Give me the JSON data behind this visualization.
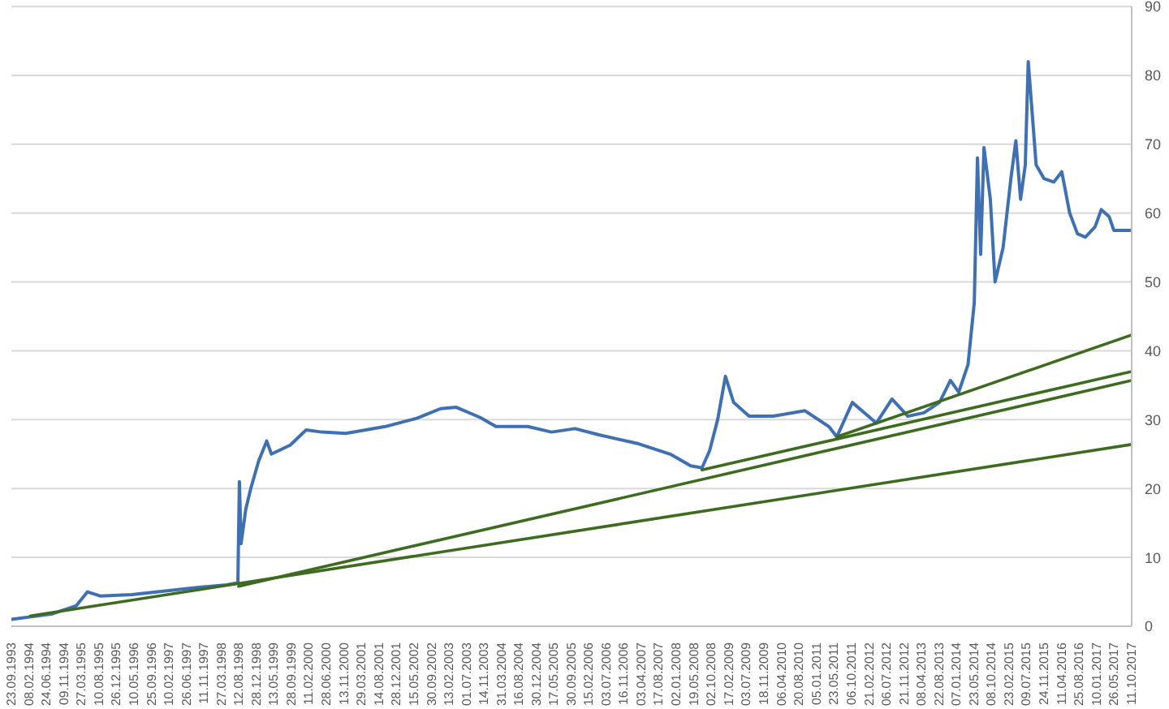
{
  "chart_data": {
    "type": "line",
    "series": [
      {
        "color": "#3e70b2",
        "x": [
          "1993-09-23",
          "1994-08-11",
          "1995-02-15",
          "1995-05-13",
          "1995-08-20",
          "1996-04-25",
          "1996-12-29",
          "1997-09-03",
          "1998-05-09",
          "1998-08-04",
          "1998-08-16",
          "1998-08-29",
          "1998-10-05",
          "1998-11-13",
          "1999-01-14",
          "1999-03-18",
          "1999-04-24",
          "1999-09-18",
          "2000-01-21",
          "2000-05-23",
          "2000-11-27",
          "2001-10-03",
          "2002-06-07",
          "2002-12-11",
          "2003-04-13",
          "2003-10-18",
          "2004-02-17",
          "2004-10-24",
          "2005-04-28",
          "2005-10-30",
          "2006-05-05",
          "2007-03-12",
          "2007-11-15",
          "2008-04-24",
          "2008-07-21",
          "2008-09-19",
          "2008-11-21",
          "2009-01-21",
          "2009-03-26",
          "2009-07-26",
          "2010-01-30",
          "2010-10-06",
          "2011-04-12",
          "2011-06-13",
          "2011-10-13",
          "2012-04-18",
          "2012-08-19",
          "2012-12-21",
          "2013-04-26",
          "2013-08-26",
          "2013-11-20",
          "2014-01-24",
          "2014-04-07",
          "2014-05-26",
          "2014-06-20",
          "2014-07-15",
          "2014-08-10",
          "2014-09-29",
          "2014-11-05",
          "2015-01-07",
          "2015-03-09",
          "2015-04-17",
          "2015-05-24",
          "2015-06-30",
          "2015-07-23",
          "2015-08-17",
          "2015-09-23",
          "2015-11-24",
          "2016-02-08",
          "2016-04-11",
          "2016-06-12",
          "2016-08-12",
          "2016-10-13",
          "2016-12-28",
          "2017-02-15",
          "2017-04-17",
          "2017-05-24",
          "2017-10-11"
        ],
        "values": [
          1.0,
          1.8,
          3.0,
          5.0,
          4.4,
          4.6,
          5.1,
          5.6,
          6.0,
          6.3,
          21,
          12,
          17,
          20,
          24,
          26.9,
          25,
          26.3,
          28.5,
          28.2,
          28.0,
          29.0,
          30.2,
          31.6,
          31.8,
          30.3,
          29.0,
          29.0,
          28.2,
          28.7,
          27.8,
          26.5,
          25.0,
          23.3,
          23.0,
          25.5,
          30.0,
          36.3,
          32.5,
          30.5,
          30.5,
          31.3,
          29.0,
          27.5,
          32.5,
          29.5,
          33.0,
          30.5,
          31.0,
          32.5,
          35.7,
          34.0,
          38,
          47,
          68,
          54,
          69.5,
          62,
          50,
          55,
          65,
          70.5,
          62,
          67,
          82,
          76,
          67,
          65,
          64.5,
          66,
          60,
          57,
          56.5,
          58,
          60.5,
          59.5,
          57.5,
          57.5
        ]
      },
      {
        "color": "#3d6b1f",
        "x": [
          "1994-02-20",
          "2017-10-11"
        ],
        "values": [
          1.5,
          26.4
        ]
      },
      {
        "color": "#3d6b1f",
        "x": [
          "1998-08-10",
          "2017-10-11"
        ],
        "values": [
          5.8,
          35.7
        ]
      },
      {
        "color": "#3d6b1f",
        "x": [
          "2008-07-21",
          "2017-10-11"
        ],
        "values": [
          22.7,
          37.0
        ]
      },
      {
        "color": "#3d6b1f",
        "x": [
          "2011-06-13",
          "2017-10-11"
        ],
        "values": [
          27.5,
          42.3
        ]
      }
    ],
    "xlim": [
      "1993-09-23",
      "2017-10-11"
    ],
    "xticks": [
      {
        "value": "1993-09-23",
        "label": "23.09.1993"
      },
      {
        "value": "1994-02-08",
        "label": "08.02.1994"
      },
      {
        "value": "1994-06-24",
        "label": "24.06.1994"
      },
      {
        "value": "1994-11-09",
        "label": "09.11.1994"
      },
      {
        "value": "1995-03-27",
        "label": "27.03.1995"
      },
      {
        "value": "1995-08-10",
        "label": "10.08.1995"
      },
      {
        "value": "1995-12-26",
        "label": "26.12.1995"
      },
      {
        "value": "1996-05-10",
        "label": "10.05.1996"
      },
      {
        "value": "1996-09-25",
        "label": "25.09.1996"
      },
      {
        "value": "1997-02-10",
        "label": "10.02.1997"
      },
      {
        "value": "1997-06-26",
        "label": "26.06.1997"
      },
      {
        "value": "1997-11-11",
        "label": "11.11.1997"
      },
      {
        "value": "1998-03-27",
        "label": "27.03.1998"
      },
      {
        "value": "1998-08-12",
        "label": "12.08.1998"
      },
      {
        "value": "1998-12-28",
        "label": "28.12.1998"
      },
      {
        "value": "1999-05-13",
        "label": "13.05.1999"
      },
      {
        "value": "1999-09-28",
        "label": "28.09.1999"
      },
      {
        "value": "2000-02-11",
        "label": "11.02.2000"
      },
      {
        "value": "2000-06-28",
        "label": "28.06.2000"
      },
      {
        "value": "2000-11-13",
        "label": "13.11.2000"
      },
      {
        "value": "2001-03-29",
        "label": "29.03.2001"
      },
      {
        "value": "2001-08-14",
        "label": "14.08.2001"
      },
      {
        "value": "2001-12-28",
        "label": "28.12.2001"
      },
      {
        "value": "2002-05-15",
        "label": "15.05.2002"
      },
      {
        "value": "2002-09-30",
        "label": "30.09.2002"
      },
      {
        "value": "2003-02-13",
        "label": "13.02.2003"
      },
      {
        "value": "2003-07-01",
        "label": "01.07.2003"
      },
      {
        "value": "2003-11-14",
        "label": "14.11.2003"
      },
      {
        "value": "2004-03-31",
        "label": "31.03.2004"
      },
      {
        "value": "2004-08-16",
        "label": "16.08.2004"
      },
      {
        "value": "2004-12-30",
        "label": "30.12.2004"
      },
      {
        "value": "2005-05-17",
        "label": "17.05.2005"
      },
      {
        "value": "2005-09-30",
        "label": "30.09.2005"
      },
      {
        "value": "2006-02-15",
        "label": "15.02.2006"
      },
      {
        "value": "2006-07-03",
        "label": "03.07.2006"
      },
      {
        "value": "2006-11-16",
        "label": "16.11.2006"
      },
      {
        "value": "2007-04-03",
        "label": "03.04.2007"
      },
      {
        "value": "2007-08-17",
        "label": "17.08.2007"
      },
      {
        "value": "2008-01-02",
        "label": "02.01.2008"
      },
      {
        "value": "2008-05-19",
        "label": "19.05.2008"
      },
      {
        "value": "2008-10-02",
        "label": "02.10.2008"
      },
      {
        "value": "2009-02-17",
        "label": "17.02.2009"
      },
      {
        "value": "2009-07-03",
        "label": "03.07.2009"
      },
      {
        "value": "2009-11-18",
        "label": "18.11.2009"
      },
      {
        "value": "2010-04-06",
        "label": "06.04.2010"
      },
      {
        "value": "2010-08-20",
        "label": "20.08.2010"
      },
      {
        "value": "2011-01-05",
        "label": "05.01.2011"
      },
      {
        "value": "2011-05-23",
        "label": "23.05.2011"
      },
      {
        "value": "2011-10-06",
        "label": "06.10.2011"
      },
      {
        "value": "2012-02-21",
        "label": "21.02.2012"
      },
      {
        "value": "2012-07-06",
        "label": "06.07.2012"
      },
      {
        "value": "2012-11-21",
        "label": "21.11.2012"
      },
      {
        "value": "2013-04-08",
        "label": "08.04.2013"
      },
      {
        "value": "2013-08-22",
        "label": "22.08.2013"
      },
      {
        "value": "2014-01-07",
        "label": "07.01.2014"
      },
      {
        "value": "2014-05-23",
        "label": "23.05.2014"
      },
      {
        "value": "2014-10-08",
        "label": "08.10.2014"
      },
      {
        "value": "2015-02-23",
        "label": "23.02.2015"
      },
      {
        "value": "2015-07-09",
        "label": "09.07.2015"
      },
      {
        "value": "2015-11-24",
        "label": "24.11.2015"
      },
      {
        "value": "2016-04-11",
        "label": "11.04.2016"
      },
      {
        "value": "2016-08-25",
        "label": "25.08.2016"
      },
      {
        "value": "2017-01-10",
        "label": "10.01.2017"
      },
      {
        "value": "2017-05-26",
        "label": "26.05.2017"
      },
      {
        "value": "2017-10-11",
        "label": "11.10.2017"
      }
    ],
    "ylim": [
      0,
      90
    ],
    "yticks": [
      0,
      10,
      20,
      30,
      40,
      50,
      60,
      70,
      80,
      90
    ],
    "grid": "y",
    "marker": "none",
    "line_style": "solid"
  }
}
